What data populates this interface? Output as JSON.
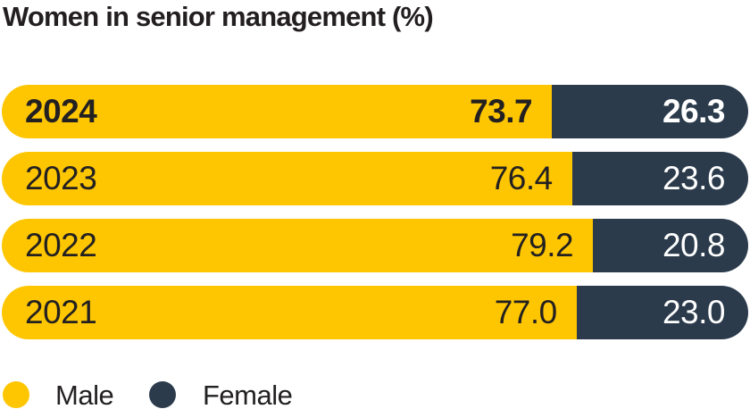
{
  "title": "Women in senior management (%)",
  "colors": {
    "male": "#FEC601",
    "female": "#2B3B4C",
    "title": "#231F20",
    "label_on_male": "#232021",
    "label_on_female": "#FFFFFF",
    "background": "#FFFFFF"
  },
  "chart_data": {
    "type": "bar",
    "orientation": "horizontal",
    "stacked": true,
    "title": "Women in senior management (%)",
    "categories": [
      "2024",
      "2023",
      "2022",
      "2021"
    ],
    "series": [
      {
        "name": "Male",
        "color": "#FEC601",
        "values": [
          73.7,
          76.4,
          79.2,
          77.0
        ]
      },
      {
        "name": "Female",
        "color": "#2B3B4C",
        "values": [
          26.3,
          23.6,
          20.8,
          23.0
        ]
      }
    ],
    "xlim": [
      0,
      100
    ],
    "value_labels_shown": true,
    "grid": false,
    "legend_position": "bottom-left",
    "highlighted_category": "2024"
  },
  "rows": [
    {
      "year": "2024",
      "male": "73.7",
      "female": "26.3",
      "male_pct": 73.7,
      "emphasis": "bold"
    },
    {
      "year": "2023",
      "male": "76.4",
      "female": "23.6",
      "male_pct": 76.4,
      "emphasis": "normal"
    },
    {
      "year": "2022",
      "male": "79.2",
      "female": "20.8",
      "male_pct": 79.2,
      "emphasis": "normal"
    },
    {
      "year": "2021",
      "male": "77.0",
      "female": "23.0",
      "male_pct": 77.0,
      "emphasis": "normal"
    }
  ],
  "legend": [
    {
      "label": "Male",
      "color": "#FEC601"
    },
    {
      "label": "Female",
      "color": "#2B3B4C"
    }
  ]
}
